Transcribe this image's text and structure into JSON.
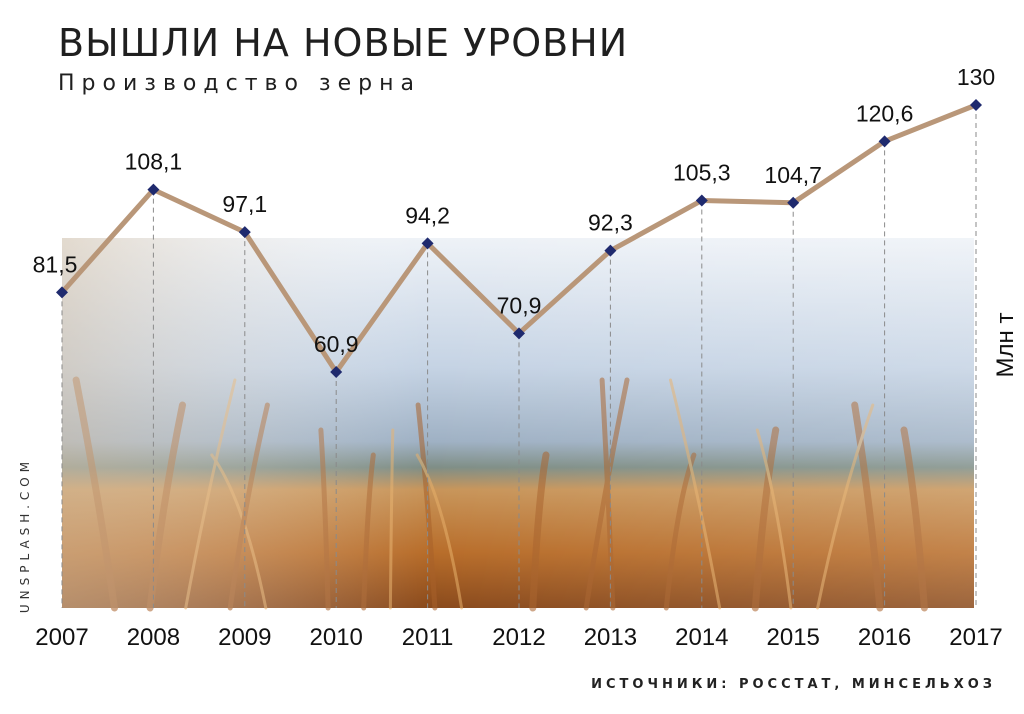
{
  "chart_data": {
    "type": "line",
    "title": "ВЫШЛИ НА НОВЫЕ УРОВНИ",
    "subtitle": "Производство зерна",
    "ylabel": "Млн т",
    "categories": [
      "2007",
      "2008",
      "2009",
      "2010",
      "2011",
      "2012",
      "2013",
      "2014",
      "2015",
      "2016",
      "2017"
    ],
    "values": [
      81.5,
      108.1,
      97.1,
      60.9,
      94.2,
      70.9,
      92.3,
      105.3,
      104.7,
      120.6,
      130
    ],
    "value_labels": [
      "81,5",
      "108,1",
      "97,1",
      "60,9",
      "94,2",
      "70,9",
      "92,3",
      "105,3",
      "104,7",
      "120,6",
      "130"
    ],
    "ylim": [
      0,
      140
    ],
    "grid": "vertical dashed",
    "series_color": "#b99779",
    "marker_color": "#1f2a6e",
    "background": "wheat field photo"
  },
  "credit": "UNSPLASH.COM",
  "source": "ИСТОЧНИКИ: РОССТАТ, МИНСЕЛЬХОЗ"
}
